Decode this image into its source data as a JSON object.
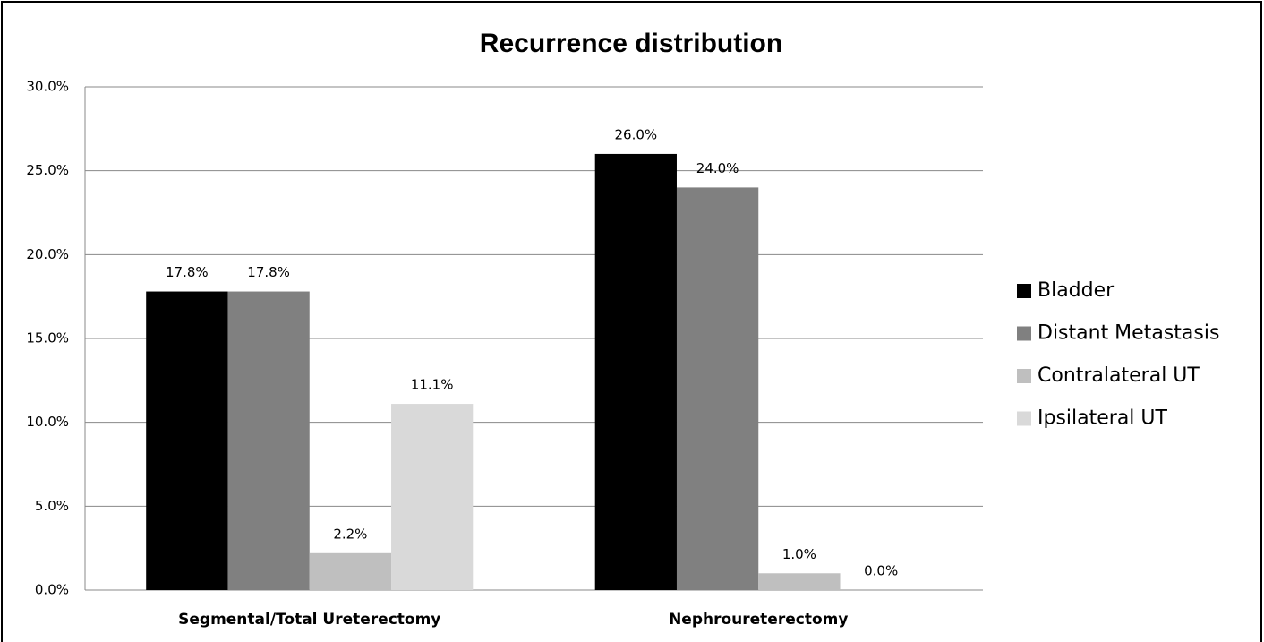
{
  "chart_data": {
    "type": "bar",
    "title": "Recurrence distribution",
    "categories": [
      "Segmental/Total Ureterectomy",
      "Nephroureterectomy"
    ],
    "series": [
      {
        "name": "Bladder",
        "color": "#000000",
        "values": [
          17.8,
          26.0
        ],
        "value_labels": [
          "17.8%",
          "26.0%"
        ]
      },
      {
        "name": "Distant Metastasis",
        "color": "#808080",
        "values": [
          17.8,
          24.0
        ],
        "value_labels": [
          "17.8%",
          "24.0%"
        ]
      },
      {
        "name": "Contralateral UT",
        "color": "#bfbfbf",
        "values": [
          2.2,
          1.0
        ],
        "value_labels": [
          "2.2%",
          "1.0%"
        ]
      },
      {
        "name": "Ipsilateral UT",
        "color": "#d9d9d9",
        "values": [
          11.1,
          0.0
        ],
        "value_labels": [
          "11.1%",
          "0.0%"
        ]
      }
    ],
    "ylim": [
      0,
      30
    ],
    "yticks": [
      {
        "value": 0,
        "label": "0.0%"
      },
      {
        "value": 5,
        "label": "5.0%"
      },
      {
        "value": 10,
        "label": "10.0%"
      },
      {
        "value": 15,
        "label": "15.0%"
      },
      {
        "value": 20,
        "label": "20.0%"
      },
      {
        "value": 25,
        "label": "25.0%"
      },
      {
        "value": 30,
        "label": "30.0%"
      }
    ],
    "grid": true,
    "legend": "right"
  }
}
